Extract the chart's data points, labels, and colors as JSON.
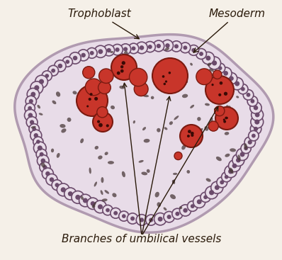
{
  "bg_color": "#f5f0e8",
  "villus_color": "#e8dce8",
  "villus_edge_color": "#b09ab0",
  "trophoblast_color": "#c8b4c8",
  "trophoblast_ring_color": "#6b4a6b",
  "mesoderm_color": "#ddd0dd",
  "vessel_fill": "#c8352a",
  "vessel_edge": "#7a1a10",
  "cell_color": "#4a3a3a",
  "label_color": "#2a1a0a",
  "title": "",
  "labels": {
    "trophoblast": "Trophoblast",
    "mesoderm": "Mesoderm",
    "vessels": "Branches of umbilical vessels"
  },
  "label_fontsize": 11,
  "label_style": "italic"
}
